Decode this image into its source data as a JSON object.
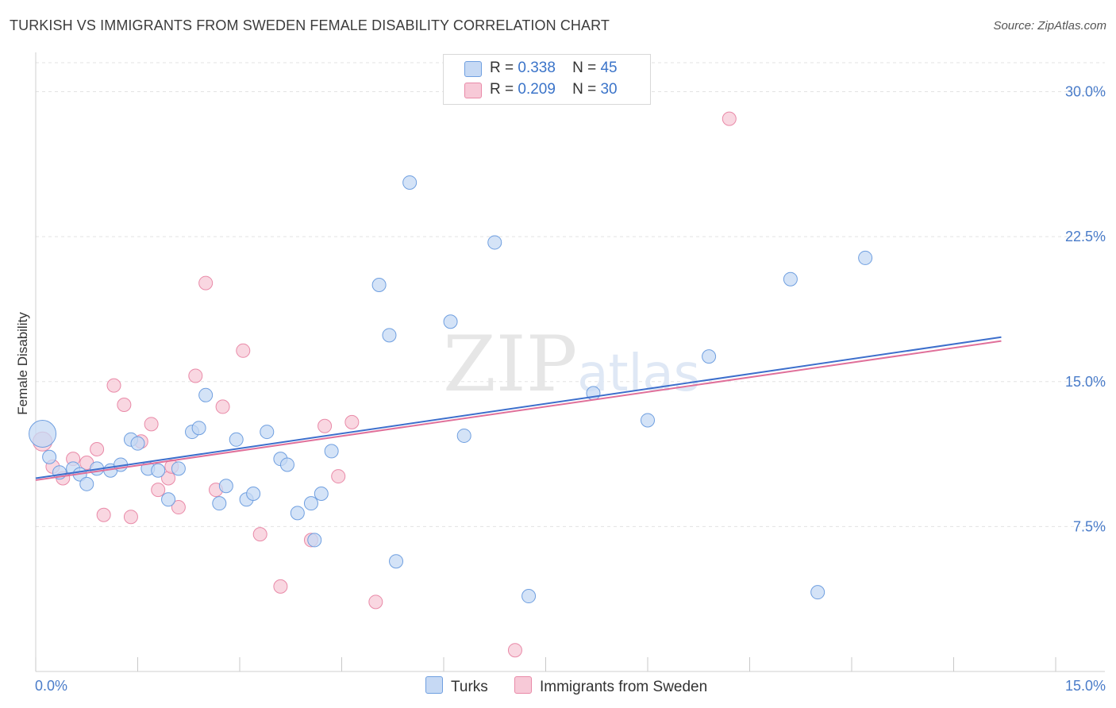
{
  "chart_data": {
    "type": "scatter",
    "title": "TURKISH VS IMMIGRANTS FROM SWEDEN FEMALE DISABILITY CORRELATION CHART",
    "source": "Source: ZipAtlas.com",
    "xlabel": "",
    "ylabel": "Female Disability",
    "xlim": [
      0,
      15
    ],
    "ylim": [
      0,
      31.5
    ],
    "x_tick_labels": [
      "0.0%",
      "15.0%"
    ],
    "y_ticks": [
      7.5,
      15.0,
      22.5,
      30.0
    ],
    "y_tick_labels": [
      "7.5%",
      "15.0%",
      "22.5%",
      "30.0%"
    ],
    "watermark": "ZIPatlas",
    "legend": {
      "turks": {
        "r_label": "R =",
        "r_value": "0.338",
        "n_label": "N =",
        "n_value": "45"
      },
      "sweden": {
        "r_label": "R =",
        "r_value": "0.209",
        "n_label": "N =",
        "n_value": "30"
      }
    },
    "series": [
      {
        "name": "Turks",
        "color": "#6f9fe0",
        "fill": "#c6d9f4",
        "trend": [
          [
            0,
            10.0
          ],
          [
            14.2,
            17.3
          ]
        ],
        "points": [
          [
            0.1,
            12.3
          ],
          [
            0.2,
            11.1
          ],
          [
            0.35,
            10.3
          ],
          [
            0.55,
            10.5
          ],
          [
            0.65,
            10.2
          ],
          [
            0.75,
            9.7
          ],
          [
            0.9,
            10.5
          ],
          [
            1.1,
            10.4
          ],
          [
            1.25,
            10.7
          ],
          [
            1.4,
            12.0
          ],
          [
            1.5,
            11.8
          ],
          [
            1.65,
            10.5
          ],
          [
            1.8,
            10.4
          ],
          [
            1.95,
            8.9
          ],
          [
            2.1,
            10.5
          ],
          [
            2.3,
            12.4
          ],
          [
            2.4,
            12.6
          ],
          [
            2.5,
            14.3
          ],
          [
            2.7,
            8.7
          ],
          [
            2.8,
            9.6
          ],
          [
            2.95,
            12.0
          ],
          [
            3.1,
            8.9
          ],
          [
            3.2,
            9.2
          ],
          [
            3.4,
            12.4
          ],
          [
            3.6,
            11.0
          ],
          [
            3.7,
            10.7
          ],
          [
            3.85,
            8.2
          ],
          [
            4.05,
            8.7
          ],
          [
            4.2,
            9.2
          ],
          [
            4.1,
            6.8
          ],
          [
            4.35,
            11.4
          ],
          [
            5.05,
            20.0
          ],
          [
            5.2,
            17.4
          ],
          [
            5.3,
            5.7
          ],
          [
            5.5,
            25.3
          ],
          [
            6.1,
            18.1
          ],
          [
            6.3,
            12.2
          ],
          [
            6.75,
            22.2
          ],
          [
            7.25,
            3.9
          ],
          [
            8.2,
            14.4
          ],
          [
            9.0,
            13.0
          ],
          [
            9.9,
            16.3
          ],
          [
            11.1,
            20.3
          ],
          [
            11.5,
            4.1
          ],
          [
            12.2,
            21.4
          ]
        ]
      },
      {
        "name": "Immigrants from Sweden",
        "color": "#e98aa8",
        "fill": "#f7c9d7",
        "trend": [
          [
            0,
            9.9
          ],
          [
            14.2,
            17.1
          ]
        ],
        "points": [
          [
            0.1,
            11.9
          ],
          [
            0.25,
            10.6
          ],
          [
            0.4,
            10.0
          ],
          [
            0.55,
            11.0
          ],
          [
            0.75,
            10.8
          ],
          [
            0.9,
            11.5
          ],
          [
            1.0,
            8.1
          ],
          [
            1.15,
            14.8
          ],
          [
            1.3,
            13.8
          ],
          [
            1.4,
            8.0
          ],
          [
            1.55,
            11.9
          ],
          [
            1.7,
            12.8
          ],
          [
            1.8,
            9.4
          ],
          [
            1.95,
            10.0
          ],
          [
            2.0,
            10.6
          ],
          [
            2.1,
            8.5
          ],
          [
            2.35,
            15.3
          ],
          [
            2.5,
            20.1
          ],
          [
            2.65,
            9.4
          ],
          [
            2.75,
            13.7
          ],
          [
            3.05,
            16.6
          ],
          [
            3.3,
            7.1
          ],
          [
            3.6,
            4.4
          ],
          [
            4.05,
            6.8
          ],
          [
            4.25,
            12.7
          ],
          [
            4.45,
            10.1
          ],
          [
            4.65,
            12.9
          ],
          [
            5.0,
            3.6
          ],
          [
            7.05,
            1.1
          ],
          [
            10.2,
            28.6
          ]
        ]
      }
    ]
  },
  "bottom_legend": {
    "turks_label": "Turks",
    "sweden_label": "Immigrants from Sweden"
  }
}
